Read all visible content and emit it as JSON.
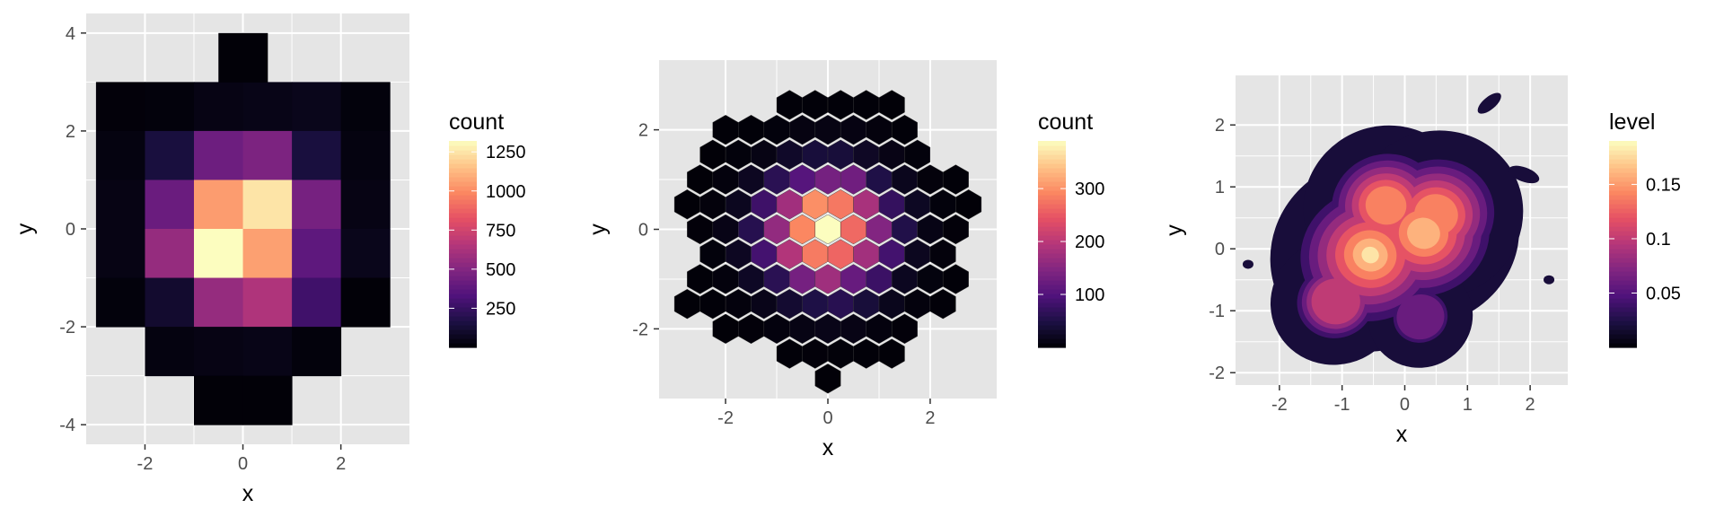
{
  "colors": {
    "panel": "#e5e5e5",
    "grid": "#ffffff",
    "axis_text": "#4d4d4d",
    "scale": [
      "#000004",
      "#1c1044",
      "#4f127b",
      "#812581",
      "#b5367a",
      "#e55064",
      "#fb8761",
      "#fec287",
      "#fcfdbf"
    ]
  },
  "chart_data": [
    {
      "type": "heatmap",
      "xlabel": "x",
      "ylabel": "y",
      "xlim": [
        -3.2,
        3.4
      ],
      "ylim": [
        -4.4,
        4.4
      ],
      "x_ticks": [
        -2,
        0,
        2
      ],
      "y_ticks": [
        -4,
        -2,
        0,
        2,
        4
      ],
      "grid": true,
      "legend": {
        "title": "count",
        "position": "right",
        "ticks": [
          250,
          500,
          750,
          1000,
          1250
        ],
        "range": [
          0,
          1320
        ]
      },
      "bin_width": 2,
      "bins": [
        {
          "x": -2,
          "y": 2.5,
          "count": 15
        },
        {
          "x": -1,
          "y": 2.5,
          "count": 20
        },
        {
          "x": 0,
          "y": 2.5,
          "count": 40
        },
        {
          "x": 1,
          "y": 2.5,
          "count": 50
        },
        {
          "x": 2,
          "y": 2.5,
          "count": 60
        },
        {
          "x": 3,
          "y": 2.5,
          "count": 20
        },
        {
          "x": 0.5,
          "y": 3.5,
          "count": 10
        },
        {
          "x": -2,
          "y": 1.5,
          "count": 30
        },
        {
          "x": -1,
          "y": 1.5,
          "count": 150
        },
        {
          "x": 0,
          "y": 1.5,
          "count": 430
        },
        {
          "x": 1,
          "y": 1.5,
          "count": 480
        },
        {
          "x": 2,
          "y": 1.5,
          "count": 150
        },
        {
          "x": 3,
          "y": 1.5,
          "count": 30
        },
        {
          "x": -2,
          "y": 0.5,
          "count": 40
        },
        {
          "x": -1,
          "y": 0.5,
          "count": 420
        },
        {
          "x": 0,
          "y": 0.5,
          "count": 1050
        },
        {
          "x": 1,
          "y": 0.5,
          "count": 1250
        },
        {
          "x": 2,
          "y": 0.5,
          "count": 460
        },
        {
          "x": 3,
          "y": 0.5,
          "count": 40
        },
        {
          "x": -2,
          "y": -0.5,
          "count": 40
        },
        {
          "x": -1,
          "y": -0.5,
          "count": 560
        },
        {
          "x": 0,
          "y": -0.5,
          "count": 1320
        },
        {
          "x": 1,
          "y": -0.5,
          "count": 1060
        },
        {
          "x": 2,
          "y": -0.5,
          "count": 380
        },
        {
          "x": 3,
          "y": -0.5,
          "count": 60
        },
        {
          "x": -2,
          "y": -1.5,
          "count": 20
        },
        {
          "x": -1,
          "y": -1.5,
          "count": 110
        },
        {
          "x": 0,
          "y": -1.5,
          "count": 560
        },
        {
          "x": 1,
          "y": -1.5,
          "count": 640
        },
        {
          "x": 2,
          "y": -1.5,
          "count": 280
        },
        {
          "x": 3,
          "y": -1.5,
          "count": 10
        },
        {
          "x": -1,
          "y": -2.5,
          "count": 30
        },
        {
          "x": 0,
          "y": -2.5,
          "count": 40
        },
        {
          "x": 1,
          "y": -2.5,
          "count": 50
        },
        {
          "x": 2,
          "y": -2.5,
          "count": 20
        },
        {
          "x": 0,
          "y": -3.5,
          "count": 10
        },
        {
          "x": 1,
          "y": -3.5,
          "count": 10
        }
      ]
    },
    {
      "type": "heatmap",
      "subtype": "hexbin",
      "xlabel": "x",
      "ylabel": "y",
      "xlim": [
        -3.3,
        3.3
      ],
      "ylim": [
        -3.4,
        3.4
      ],
      "x_ticks": [
        -2,
        0,
        2
      ],
      "y_ticks": [
        -2,
        0,
        2
      ],
      "grid": true,
      "legend": {
        "title": "count",
        "position": "right",
        "ticks": [
          100,
          200,
          300
        ],
        "range": [
          0,
          390
        ]
      },
      "hex_width": 0.5,
      "hex_row_height": 0.5,
      "max_count": 380,
      "coverage_radius": 2.9
    },
    {
      "type": "heatmap",
      "subtype": "density-contour",
      "xlabel": "x",
      "ylabel": "y",
      "xlim": [
        -2.7,
        2.6
      ],
      "ylim": [
        -2.2,
        2.8
      ],
      "x_ticks": [
        -2,
        -1,
        0,
        1,
        2
      ],
      "y_ticks": [
        -2,
        -1,
        0,
        1,
        2
      ],
      "grid": true,
      "legend": {
        "title": "level",
        "position": "right",
        "ticks": [
          0.05,
          0.1,
          0.15
        ],
        "range": [
          0.0,
          0.19
        ]
      },
      "levels": [
        0.02,
        0.04,
        0.06,
        0.08,
        0.1,
        0.12,
        0.14,
        0.16,
        0.18
      ],
      "peaks": [
        {
          "x": -0.55,
          "y": -0.1,
          "level": 0.18
        },
        {
          "x": 0.3,
          "y": 0.25,
          "level": 0.17
        },
        {
          "x": -0.3,
          "y": 0.7,
          "level": 0.14
        },
        {
          "x": 0.5,
          "y": 0.55,
          "level": 0.15
        },
        {
          "x": -1.1,
          "y": -0.85,
          "level": 0.1
        },
        {
          "x": 0.25,
          "y": -1.1,
          "level": 0.07
        }
      ],
      "islands": [
        {
          "x": -2.5,
          "y": -0.25,
          "level": 0.02
        },
        {
          "x": 1.35,
          "y": 2.35,
          "level": 0.02
        },
        {
          "x": 1.9,
          "y": 1.2,
          "level": 0.02
        },
        {
          "x": 2.3,
          "y": -0.5,
          "level": 0.02
        }
      ]
    }
  ]
}
